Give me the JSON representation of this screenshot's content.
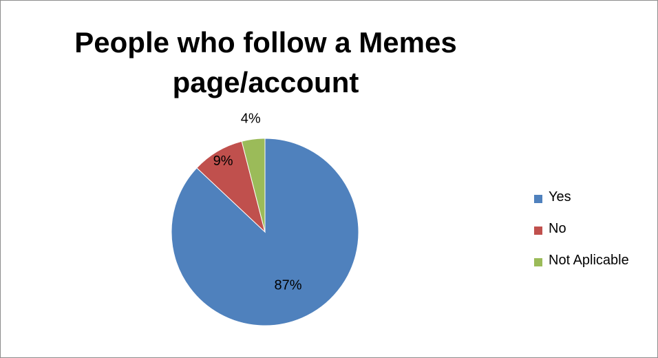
{
  "chart_data": {
    "type": "pie",
    "title_lines": [
      "People who follow a Memes",
      "page/account"
    ],
    "categories": [
      "Yes",
      "No",
      "Not Aplicable"
    ],
    "values": [
      87,
      9,
      4
    ],
    "labels": [
      "87%",
      "9%",
      "4%"
    ],
    "colors": [
      "#4f81bd",
      "#c0504d",
      "#9bbb59"
    ],
    "start_angle_deg": 0,
    "direction": "clockwise",
    "legend_position": "right"
  }
}
